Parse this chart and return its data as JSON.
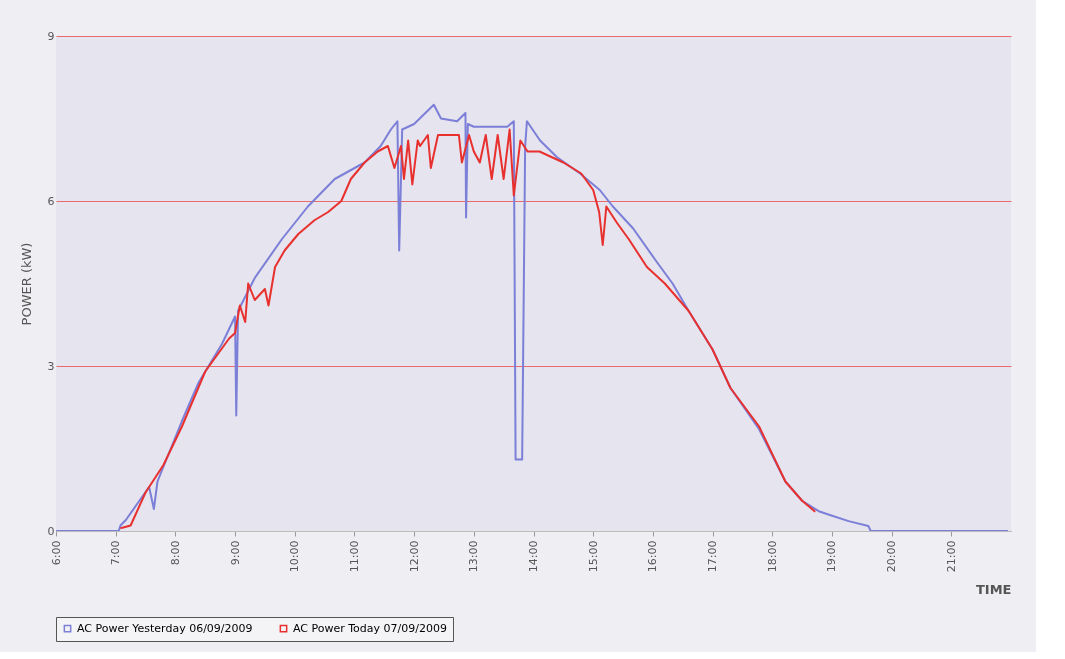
{
  "chart_data": {
    "type": "line",
    "xlabel": "TIME",
    "ylabel": "POWER (kW)",
    "xlim": [
      6,
      22
    ],
    "ylim": [
      0,
      9
    ],
    "yticks": [
      0,
      3,
      6,
      9
    ],
    "xticks": [
      {
        "value": 6,
        "label": "6:00"
      },
      {
        "value": 7,
        "label": "7:00"
      },
      {
        "value": 8,
        "label": "8:00"
      },
      {
        "value": 9,
        "label": "9:00"
      },
      {
        "value": 10,
        "label": "10:00"
      },
      {
        "value": 11,
        "label": "11:00"
      },
      {
        "value": 12,
        "label": "12:00"
      },
      {
        "value": 13,
        "label": "13:00"
      },
      {
        "value": 14,
        "label": "14:00"
      },
      {
        "value": 15,
        "label": "15:00"
      },
      {
        "value": 16,
        "label": "16:00"
      },
      {
        "value": 17,
        "label": "17:00"
      },
      {
        "value": 18,
        "label": "18:00"
      },
      {
        "value": 19,
        "label": "19:00"
      },
      {
        "value": 20,
        "label": "20:00"
      },
      {
        "value": 21,
        "label": "21:00"
      }
    ],
    "grid": "y",
    "legend": "bottom",
    "marker": "none",
    "line_style": "solid",
    "series": [
      {
        "name": "AC Power Yesterday 06/09/2009",
        "color": "#7b7fd8",
        "x": [
          6.0,
          7.05,
          7.08,
          7.17,
          7.56,
          7.64,
          7.7,
          8.11,
          8.39,
          8.78,
          9.0,
          9.02,
          9.05,
          9.33,
          9.78,
          10.22,
          10.67,
          11.17,
          11.44,
          11.61,
          11.72,
          11.75,
          11.8,
          12.0,
          12.33,
          12.45,
          12.72,
          12.86,
          12.87,
          12.9,
          13.0,
          13.56,
          13.67,
          13.7,
          13.81,
          13.86,
          13.89,
          14.11,
          14.39,
          14.78,
          15.11,
          15.33,
          15.67,
          16.06,
          16.33,
          16.6,
          17.0,
          17.3,
          17.78,
          18.22,
          18.5,
          18.78,
          18.94,
          19.28,
          19.61,
          19.65,
          21.95
        ],
        "values": [
          0,
          0,
          0.1,
          0.2,
          0.8,
          0.4,
          0.9,
          2.0,
          2.7,
          3.4,
          3.9,
          2.1,
          4.0,
          4.6,
          5.3,
          5.9,
          6.4,
          6.7,
          7.0,
          7.3,
          7.45,
          5.1,
          7.3,
          7.4,
          7.75,
          7.5,
          7.45,
          7.6,
          5.7,
          7.4,
          7.35,
          7.35,
          7.45,
          1.3,
          1.3,
          7.0,
          7.45,
          7.1,
          6.8,
          6.5,
          6.2,
          5.9,
          5.5,
          4.9,
          4.5,
          4.0,
          3.3,
          2.6,
          1.85,
          0.9,
          0.55,
          0.36,
          0.3,
          0.18,
          0.09,
          0,
          0
        ]
      },
      {
        "name": "AC Power Today 07/09/2009",
        "color": "#e8312f",
        "x": [
          7.08,
          7.25,
          7.5,
          7.8,
          8.11,
          8.5,
          8.9,
          9.0,
          9.08,
          9.17,
          9.22,
          9.33,
          9.5,
          9.56,
          9.67,
          9.83,
          10.06,
          10.33,
          10.56,
          10.78,
          10.94,
          11.17,
          11.39,
          11.56,
          11.67,
          11.78,
          11.83,
          11.9,
          11.97,
          12.06,
          12.1,
          12.23,
          12.28,
          12.4,
          12.6,
          12.75,
          12.8,
          12.92,
          13.0,
          13.1,
          13.2,
          13.3,
          13.4,
          13.5,
          13.6,
          13.67,
          13.78,
          13.9,
          14.1,
          14.3,
          14.5,
          14.8,
          15.0,
          15.1,
          15.16,
          15.22,
          15.4,
          15.6,
          15.9,
          16.2,
          16.6,
          17.0,
          17.3,
          17.78,
          18.22,
          18.5,
          18.72
        ],
        "values": [
          0.05,
          0.1,
          0.7,
          1.2,
          1.9,
          2.9,
          3.5,
          3.6,
          4.1,
          3.8,
          4.5,
          4.2,
          4.4,
          4.1,
          4.8,
          5.1,
          5.4,
          5.65,
          5.8,
          6.0,
          6.4,
          6.7,
          6.9,
          7.0,
          6.6,
          7.0,
          6.4,
          7.1,
          6.3,
          7.1,
          7.0,
          7.2,
          6.6,
          7.2,
          7.2,
          7.2,
          6.7,
          7.2,
          6.9,
          6.7,
          7.2,
          6.4,
          7.2,
          6.4,
          7.3,
          6.1,
          7.1,
          6.9,
          6.9,
          6.8,
          6.7,
          6.5,
          6.2,
          5.8,
          5.2,
          5.9,
          5.6,
          5.3,
          4.8,
          4.5,
          4.0,
          3.3,
          2.6,
          1.9,
          0.9,
          0.55,
          0.35
        ]
      }
    ]
  }
}
